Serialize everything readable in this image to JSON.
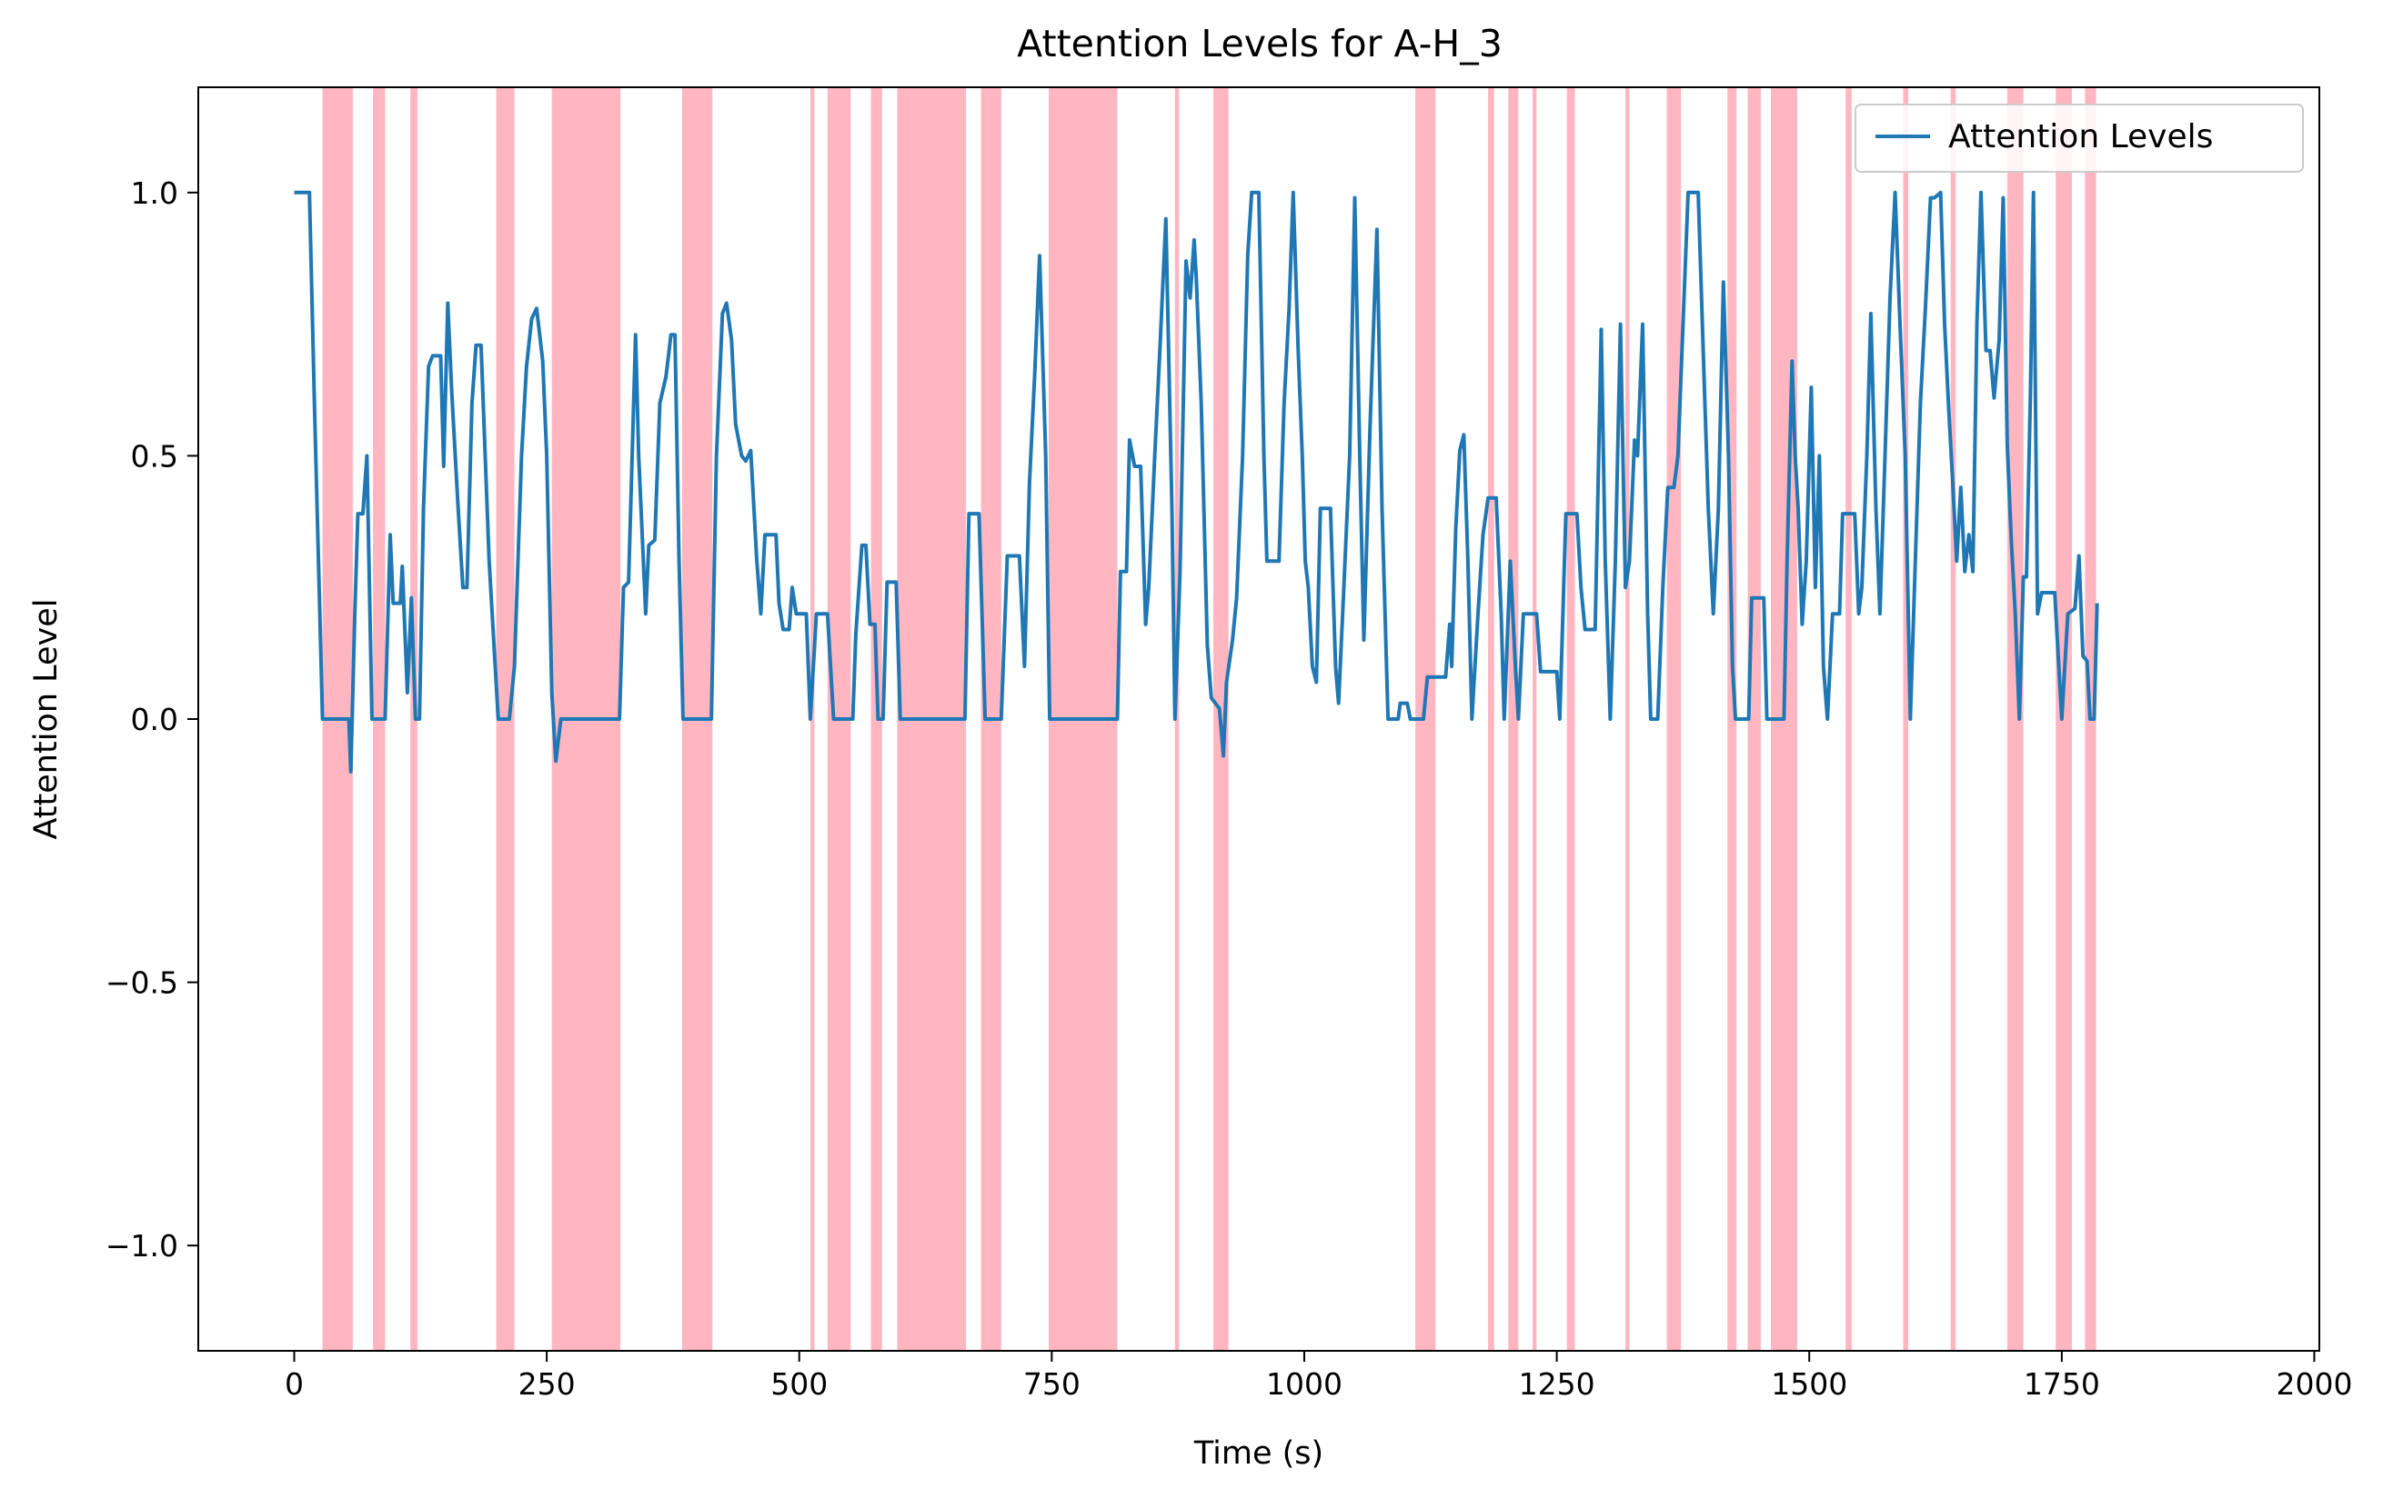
{
  "chart_data": {
    "type": "line",
    "title": "Attention Levels for A-H_3",
    "xlabel": "Time (s)",
    "ylabel": "Attention Level",
    "xlim": [
      -95,
      2005
    ],
    "ylim": [
      -1.2,
      1.2
    ],
    "xticks": [
      0,
      250,
      500,
      750,
      1000,
      1250,
      1500,
      1750,
      2000
    ],
    "xtick_labels": [
      "0",
      "250",
      "500",
      "750",
      "1000",
      "1250",
      "1500",
      "1750",
      "2000"
    ],
    "yticks": [
      -1.0,
      -0.5,
      0.0,
      0.5,
      1.0
    ],
    "ytick_labels": [
      "−1.0",
      "−0.5",
      "0.0",
      "0.5",
      "1.0"
    ],
    "grid": false,
    "legend_position": "top-right",
    "series": [
      {
        "name": "Attention Levels",
        "color": "#1f77b4",
        "points": [
          [
            0,
            1.0
          ],
          [
            15,
            1.0
          ],
          [
            20,
            0.6
          ],
          [
            28,
            0.0
          ],
          [
            54,
            0.0
          ],
          [
            56,
            -0.1
          ],
          [
            60,
            0.2
          ],
          [
            63,
            0.39
          ],
          [
            68,
            0.39
          ],
          [
            72,
            0.5
          ],
          [
            77,
            0.0
          ],
          [
            90,
            0.0
          ],
          [
            95,
            0.35
          ],
          [
            98,
            0.22
          ],
          [
            105,
            0.22
          ],
          [
            107,
            0.29
          ],
          [
            112,
            0.05
          ],
          [
            116,
            0.23
          ],
          [
            120,
            0.0
          ],
          [
            124,
            0.0
          ],
          [
            128,
            0.4
          ],
          [
            133,
            0.67
          ],
          [
            137,
            0.69
          ],
          [
            145,
            0.69
          ],
          [
            148,
            0.48
          ],
          [
            152,
            0.79
          ],
          [
            156,
            0.62
          ],
          [
            162,
            0.41
          ],
          [
            167,
            0.25
          ],
          [
            171,
            0.25
          ],
          [
            176,
            0.6
          ],
          [
            180,
            0.71
          ],
          [
            185,
            0.71
          ],
          [
            193,
            0.3
          ],
          [
            202,
            0.0
          ],
          [
            213,
            0.0
          ],
          [
            218,
            0.1
          ],
          [
            225,
            0.5
          ],
          [
            230,
            0.67
          ],
          [
            235,
            0.76
          ],
          [
            240,
            0.78
          ],
          [
            246,
            0.68
          ],
          [
            250,
            0.5
          ],
          [
            255,
            0.05
          ],
          [
            259,
            -0.08
          ],
          [
            264,
            0.0
          ],
          [
            322,
            0.0
          ],
          [
            326,
            0.25
          ],
          [
            331,
            0.26
          ],
          [
            338,
            0.73
          ],
          [
            341,
            0.5
          ],
          [
            345,
            0.33
          ],
          [
            348,
            0.2
          ],
          [
            351,
            0.33
          ],
          [
            357,
            0.34
          ],
          [
            362,
            0.6
          ],
          [
            368,
            0.65
          ],
          [
            373,
            0.73
          ],
          [
            377,
            0.73
          ],
          [
            381,
            0.3
          ],
          [
            385,
            0.0
          ],
          [
            413,
            0.0
          ],
          [
            418,
            0.5
          ],
          [
            424,
            0.77
          ],
          [
            428,
            0.79
          ],
          [
            433,
            0.72
          ],
          [
            437,
            0.56
          ],
          [
            443,
            0.5
          ],
          [
            447,
            0.49
          ],
          [
            452,
            0.51
          ],
          [
            458,
            0.3
          ],
          [
            462,
            0.2
          ],
          [
            466,
            0.35
          ],
          [
            477,
            0.35
          ],
          [
            480,
            0.22
          ],
          [
            484,
            0.17
          ],
          [
            490,
            0.17
          ],
          [
            493,
            0.25
          ],
          [
            497,
            0.2
          ],
          [
            507,
            0.2
          ],
          [
            511,
            0.0
          ],
          [
            517,
            0.2
          ],
          [
            528,
            0.2
          ],
          [
            534,
            0.0
          ],
          [
            553,
            0.0
          ],
          [
            556,
            0.16
          ],
          [
            562,
            0.33
          ],
          [
            566,
            0.33
          ],
          [
            570,
            0.18
          ],
          [
            575,
            0.18
          ],
          [
            578,
            0.0
          ],
          [
            583,
            0.0
          ],
          [
            587,
            0.26
          ],
          [
            596,
            0.26
          ],
          [
            600,
            0.0
          ],
          [
            664,
            0.0
          ],
          [
            668,
            0.39
          ],
          [
            678,
            0.39
          ],
          [
            684,
            0.0
          ],
          [
            700,
            0.0
          ],
          [
            706,
            0.31
          ],
          [
            718,
            0.31
          ],
          [
            723,
            0.1
          ],
          [
            728,
            0.45
          ],
          [
            733,
            0.65
          ],
          [
            738,
            0.88
          ],
          [
            744,
            0.5
          ],
          [
            748,
            0.0
          ],
          [
            815,
            0.0
          ],
          [
            818,
            0.28
          ],
          [
            824,
            0.28
          ],
          [
            827,
            0.53
          ],
          [
            832,
            0.48
          ],
          [
            838,
            0.48
          ],
          [
            843,
            0.18
          ],
          [
            846,
            0.25
          ],
          [
            852,
            0.5
          ],
          [
            857,
            0.7
          ],
          [
            863,
            0.95
          ],
          [
            869,
            0.4
          ],
          [
            872,
            0.0
          ],
          [
            877,
            0.28
          ],
          [
            883,
            0.87
          ],
          [
            887,
            0.8
          ],
          [
            891,
            0.91
          ],
          [
            893,
            0.84
          ],
          [
            898,
            0.6
          ],
          [
            904,
            0.14
          ],
          [
            908,
            0.04
          ],
          [
            916,
            0.02
          ],
          [
            920,
            -0.07
          ],
          [
            923,
            0.07
          ],
          [
            929,
            0.15
          ],
          [
            933,
            0.23
          ],
          [
            939,
            0.5
          ],
          [
            944,
            0.88
          ],
          [
            948,
            1.0
          ],
          [
            955,
            1.0
          ],
          [
            960,
            0.5
          ],
          [
            963,
            0.3
          ],
          [
            975,
            0.3
          ],
          [
            980,
            0.6
          ],
          [
            985,
            0.78
          ],
          [
            989,
            1.0
          ],
          [
            994,
            0.7
          ],
          [
            998,
            0.5
          ],
          [
            1001,
            0.3
          ],
          [
            1004,
            0.25
          ],
          [
            1008,
            0.1
          ],
          [
            1012,
            0.07
          ],
          [
            1016,
            0.4
          ],
          [
            1026,
            0.4
          ],
          [
            1031,
            0.1
          ],
          [
            1034,
            0.03
          ],
          [
            1038,
            0.2
          ],
          [
            1045,
            0.5
          ],
          [
            1050,
            0.99
          ],
          [
            1055,
            0.5
          ],
          [
            1059,
            0.15
          ],
          [
            1065,
            0.55
          ],
          [
            1072,
            0.93
          ],
          [
            1077,
            0.4
          ],
          [
            1083,
            0.0
          ],
          [
            1093,
            0.0
          ],
          [
            1095,
            0.03
          ],
          [
            1102,
            0.03
          ],
          [
            1105,
            0.0
          ],
          [
            1118,
            0.0
          ],
          [
            1122,
            0.08
          ],
          [
            1140,
            0.08
          ],
          [
            1144,
            0.18
          ],
          [
            1146,
            0.1
          ],
          [
            1150,
            0.36
          ],
          [
            1154,
            0.51
          ],
          [
            1158,
            0.54
          ],
          [
            1162,
            0.3
          ],
          [
            1166,
            0.0
          ],
          [
            1172,
            0.2
          ],
          [
            1177,
            0.35
          ],
          [
            1182,
            0.42
          ],
          [
            1190,
            0.42
          ],
          [
            1195,
            0.2
          ],
          [
            1198,
            0.0
          ],
          [
            1204,
            0.3
          ],
          [
            1209,
            0.1
          ],
          [
            1212,
            0.0
          ],
          [
            1217,
            0.2
          ],
          [
            1230,
            0.2
          ],
          [
            1234,
            0.09
          ],
          [
            1250,
            0.09
          ],
          [
            1253,
            0.0
          ],
          [
            1259,
            0.39
          ],
          [
            1270,
            0.39
          ],
          [
            1274,
            0.25
          ],
          [
            1278,
            0.17
          ],
          [
            1288,
            0.17
          ],
          [
            1294,
            0.74
          ],
          [
            1298,
            0.3
          ],
          [
            1303,
            0.0
          ],
          [
            1308,
            0.3
          ],
          [
            1313,
            0.75
          ],
          [
            1318,
            0.25
          ],
          [
            1322,
            0.3
          ],
          [
            1327,
            0.53
          ],
          [
            1330,
            0.5
          ],
          [
            1335,
            0.75
          ],
          [
            1340,
            0.2
          ],
          [
            1343,
            0.0
          ],
          [
            1350,
            0.0
          ],
          [
            1355,
            0.25
          ],
          [
            1360,
            0.44
          ],
          [
            1366,
            0.44
          ],
          [
            1370,
            0.5
          ],
          [
            1375,
            0.75
          ],
          [
            1380,
            1.0
          ],
          [
            1390,
            1.0
          ],
          [
            1395,
            0.7
          ],
          [
            1400,
            0.4
          ],
          [
            1405,
            0.2
          ],
          [
            1410,
            0.4
          ],
          [
            1415,
            0.83
          ],
          [
            1420,
            0.5
          ],
          [
            1424,
            0.1
          ],
          [
            1427,
            0.0
          ],
          [
            1440,
            0.0
          ],
          [
            1443,
            0.23
          ],
          [
            1455,
            0.23
          ],
          [
            1458,
            0.0
          ],
          [
            1475,
            0.0
          ],
          [
            1478,
            0.3
          ],
          [
            1483,
            0.68
          ],
          [
            1486,
            0.5
          ],
          [
            1489,
            0.4
          ],
          [
            1493,
            0.18
          ],
          [
            1497,
            0.3
          ],
          [
            1502,
            0.63
          ],
          [
            1506,
            0.25
          ],
          [
            1510,
            0.5
          ],
          [
            1514,
            0.1
          ],
          [
            1518,
            0.0
          ],
          [
            1523,
            0.2
          ],
          [
            1530,
            0.2
          ],
          [
            1533,
            0.39
          ],
          [
            1545,
            0.39
          ],
          [
            1549,
            0.2
          ],
          [
            1552,
            0.25
          ],
          [
            1557,
            0.5
          ],
          [
            1561,
            0.77
          ],
          [
            1566,
            0.4
          ],
          [
            1570,
            0.2
          ],
          [
            1575,
            0.5
          ],
          [
            1580,
            0.8
          ],
          [
            1585,
            1.0
          ],
          [
            1590,
            0.74
          ],
          [
            1595,
            0.5
          ],
          [
            1600,
            0.0
          ],
          [
            1605,
            0.3
          ],
          [
            1610,
            0.6
          ],
          [
            1615,
            0.78
          ],
          [
            1620,
            0.99
          ],
          [
            1624,
            0.99
          ],
          [
            1630,
            1.0
          ],
          [
            1634,
            0.75
          ],
          [
            1638,
            0.59
          ],
          [
            1642,
            0.45
          ],
          [
            1646,
            0.3
          ],
          [
            1650,
            0.44
          ],
          [
            1654,
            0.28
          ],
          [
            1658,
            0.35
          ],
          [
            1662,
            0.28
          ],
          [
            1666,
            0.75
          ],
          [
            1670,
            1.0
          ],
          [
            1675,
            0.7
          ],
          [
            1679,
            0.7
          ],
          [
            1683,
            0.61
          ],
          [
            1688,
            0.72
          ],
          [
            1692,
            0.99
          ],
          [
            1696,
            0.52
          ],
          [
            1700,
            0.34
          ],
          [
            1704,
            0.2
          ],
          [
            1708,
            0.0
          ],
          [
            1712,
            0.27
          ],
          [
            1715,
            0.27
          ],
          [
            1719,
            0.62
          ],
          [
            1722,
            1.0
          ],
          [
            1726,
            0.2
          ],
          [
            1730,
            0.24
          ],
          [
            1743,
            0.24
          ],
          [
            1750,
            0.0
          ],
          [
            1756,
            0.2
          ],
          [
            1763,
            0.21
          ],
          [
            1767,
            0.31
          ],
          [
            1771,
            0.12
          ],
          [
            1775,
            0.11
          ],
          [
            1778,
            0.0
          ],
          [
            1782,
            0.0
          ],
          [
            1785,
            0.22
          ]
        ]
      }
    ],
    "shaded_spans": {
      "color": "#ffb6c1",
      "spans": [
        [
          28,
          58
        ],
        [
          78,
          90
        ],
        [
          115,
          122
        ],
        [
          200,
          218
        ],
        [
          255,
          323
        ],
        [
          384,
          414
        ],
        [
          511,
          515
        ],
        [
          528,
          551
        ],
        [
          571,
          582
        ],
        [
          597,
          665
        ],
        [
          680,
          700
        ],
        [
          747,
          815
        ],
        [
          872,
          876
        ],
        [
          910,
          925
        ],
        [
          1110,
          1130
        ],
        [
          1182,
          1188
        ],
        [
          1202,
          1212
        ],
        [
          1226,
          1230
        ],
        [
          1260,
          1268
        ],
        [
          1318,
          1322
        ],
        [
          1359,
          1373
        ],
        [
          1419,
          1428
        ],
        [
          1439,
          1452
        ],
        [
          1462,
          1488
        ],
        [
          1536,
          1542
        ],
        [
          1593,
          1598
        ],
        [
          1640,
          1645
        ],
        [
          1696,
          1712
        ],
        [
          1744,
          1760
        ],
        [
          1773,
          1784
        ]
      ]
    }
  }
}
